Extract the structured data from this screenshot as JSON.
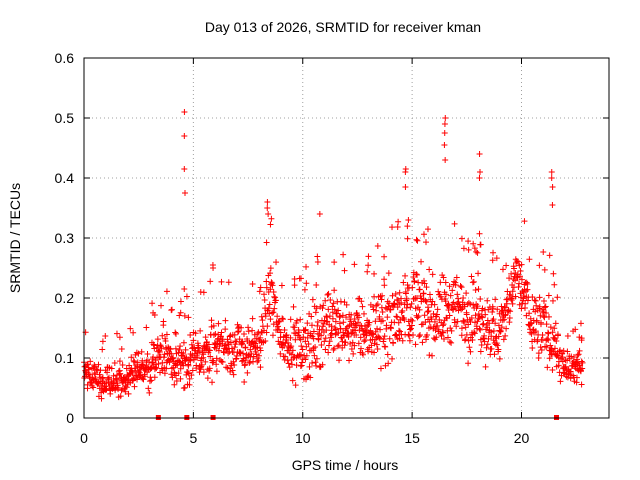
{
  "chart_data": {
    "type": "scatter",
    "title": "Day 013 of 2026, SRMTID for receiver kman",
    "xlabel": "GPS time / hours",
    "ylabel": "SRMTID / TECUs",
    "xlim": [
      0,
      24
    ],
    "ylim": [
      0,
      0.6
    ],
    "xticks": [
      "0",
      "5",
      "10",
      "15",
      "20"
    ],
    "yticks": [
      "0",
      "0.1",
      "0.2",
      "0.3",
      "0.4",
      "0.5",
      "0.6"
    ],
    "grid": true,
    "marker": "plus",
    "color": "#ff0000",
    "spikes": [
      {
        "x": 4.6,
        "y": [
          0.51,
          0.47,
          0.415,
          0.375,
          0.215
        ]
      },
      {
        "x": 16.5,
        "y": [
          0.5,
          0.49,
          0.475,
          0.455,
          0.43
        ]
      },
      {
        "x": 14.7,
        "y": [
          0.415,
          0.41,
          0.385
        ]
      },
      {
        "x": 18.1,
        "y": [
          0.44,
          0.41,
          0.4
        ]
      },
      {
        "x": 21.4,
        "y": [
          0.41,
          0.4,
          0.385,
          0.355
        ]
      },
      {
        "x": 8.4,
        "y": [
          0.36,
          0.35,
          0.34
        ]
      },
      {
        "x": 10.8,
        "y": [
          0.34
        ]
      },
      {
        "x": 5.9,
        "y": [
          0.255,
          0.25
        ]
      }
    ],
    "baseline_points_x": [
      3.4,
      4.7,
      5.9,
      21.6
    ],
    "envelope": [
      {
        "x": 0.0,
        "low": 0.03,
        "high": 0.13
      },
      {
        "x": 1.0,
        "low": 0.02,
        "high": 0.1
      },
      {
        "x": 2.0,
        "low": 0.02,
        "high": 0.11
      },
      {
        "x": 3.0,
        "low": 0.03,
        "high": 0.14
      },
      {
        "x": 3.6,
        "low": 0.05,
        "high": 0.18
      },
      {
        "x": 4.2,
        "low": 0.04,
        "high": 0.14
      },
      {
        "x": 5.0,
        "low": 0.04,
        "high": 0.16
      },
      {
        "x": 6.0,
        "low": 0.05,
        "high": 0.19
      },
      {
        "x": 7.0,
        "low": 0.05,
        "high": 0.18
      },
      {
        "x": 8.0,
        "low": 0.05,
        "high": 0.18
      },
      {
        "x": 8.5,
        "low": 0.12,
        "high": 0.3
      },
      {
        "x": 9.0,
        "low": 0.07,
        "high": 0.2
      },
      {
        "x": 10.0,
        "low": 0.03,
        "high": 0.2
      },
      {
        "x": 11.0,
        "low": 0.06,
        "high": 0.25
      },
      {
        "x": 12.0,
        "low": 0.08,
        "high": 0.22
      },
      {
        "x": 13.0,
        "low": 0.07,
        "high": 0.22
      },
      {
        "x": 14.0,
        "low": 0.06,
        "high": 0.27
      },
      {
        "x": 15.0,
        "low": 0.1,
        "high": 0.29
      },
      {
        "x": 16.0,
        "low": 0.08,
        "high": 0.26
      },
      {
        "x": 17.0,
        "low": 0.09,
        "high": 0.28
      },
      {
        "x": 18.0,
        "low": 0.07,
        "high": 0.27
      },
      {
        "x": 19.0,
        "low": 0.06,
        "high": 0.22
      },
      {
        "x": 19.8,
        "low": 0.17,
        "high": 0.31
      },
      {
        "x": 20.5,
        "low": 0.07,
        "high": 0.25
      },
      {
        "x": 21.4,
        "low": 0.06,
        "high": 0.22
      },
      {
        "x": 22.0,
        "low": 0.03,
        "high": 0.12
      },
      {
        "x": 22.8,
        "low": 0.04,
        "high": 0.13
      }
    ]
  }
}
